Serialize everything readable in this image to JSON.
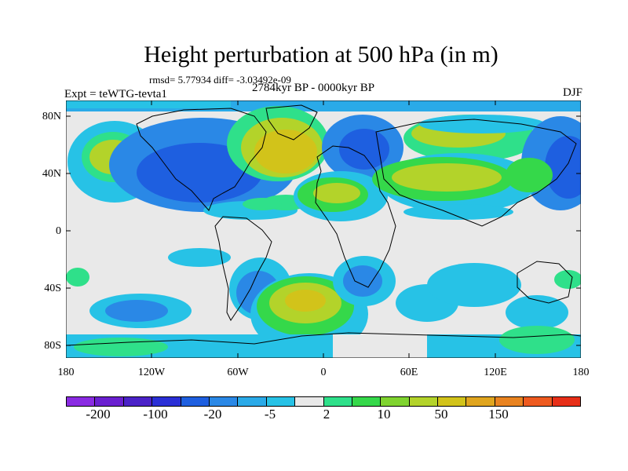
{
  "title": "Height perturbation at 500 hPa (in m)",
  "stats": "rmsd= 5.77934 diff= -3.03492e-09",
  "experiment": "Expt = teWTG-tevta1",
  "period": "2784kyr BP - 0000kyr BP",
  "season": "DJF",
  "axes": {
    "lat_labels": [
      "80N",
      "40N",
      "0",
      "40S",
      "80S"
    ],
    "lon_labels": [
      "180",
      "120W",
      "60W",
      "0",
      "60E",
      "120E",
      "180"
    ]
  },
  "colorbar": {
    "colors": [
      "#8a2be2",
      "#6a1fd0",
      "#4b22c8",
      "#2a2fd6",
      "#1e5fe0",
      "#2a88e6",
      "#2aaae8",
      "#27c2e6",
      "#e9e9e9",
      "#2fe08a",
      "#35d84a",
      "#7fd32f",
      "#b3d32a",
      "#d2c31a",
      "#e0a51e",
      "#e98320",
      "#ee5a1f",
      "#e72f18"
    ],
    "labels": [
      "-200",
      "-100",
      "-20",
      "-5",
      "2",
      "10",
      "50",
      "150"
    ]
  },
  "map_colors": {
    "background": "#e9e9e9",
    "coast": "#000000"
  }
}
